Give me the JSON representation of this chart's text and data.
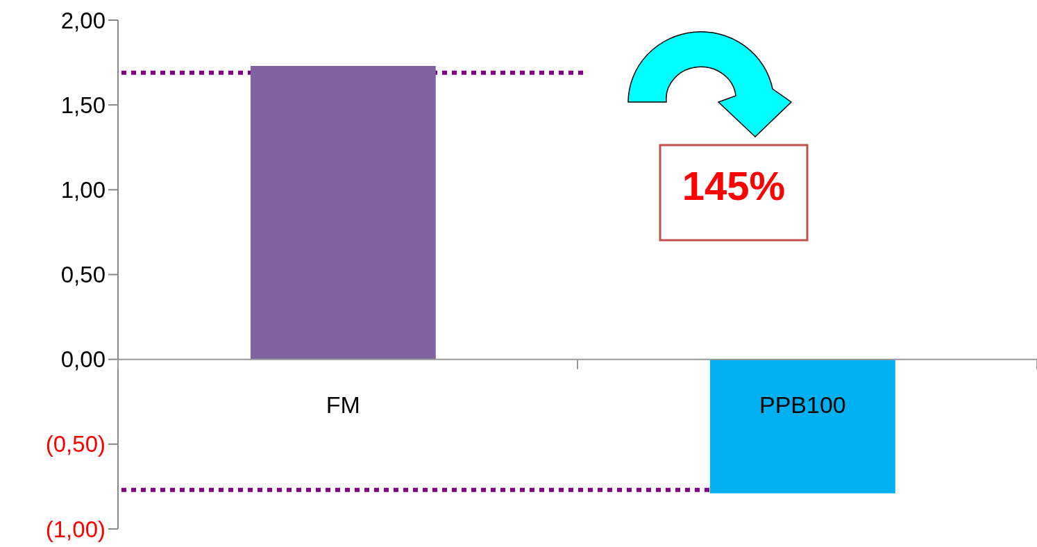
{
  "chart_data": {
    "type": "bar",
    "categories": [
      "FM",
      "PPB100"
    ],
    "colors": [
      "#8064a2",
      "#00b0f0"
    ],
    "values": [
      1.73,
      -0.79
    ],
    "ylim": [
      -1,
      2
    ],
    "yticks": [
      {
        "value": -1,
        "label": "(1,00)"
      },
      {
        "value": -0.5,
        "label": "(0,50)"
      },
      {
        "value": 0,
        "label": "0,00"
      },
      {
        "value": 0.5,
        "label": "0,50"
      },
      {
        "value": 1,
        "label": "1,00"
      },
      {
        "value": 1.5,
        "label": "1,50"
      },
      {
        "value": 2,
        "label": "2,00"
      }
    ],
    "ref_lines": [
      {
        "axis": "y",
        "value": 1.69,
        "color": "#800080",
        "line_style": "dotted"
      },
      {
        "axis": "y",
        "value": -0.77,
        "color": "#800080",
        "line_style": "dotted"
      }
    ],
    "annotations": [
      "145%"
    ],
    "grid": false
  }
}
